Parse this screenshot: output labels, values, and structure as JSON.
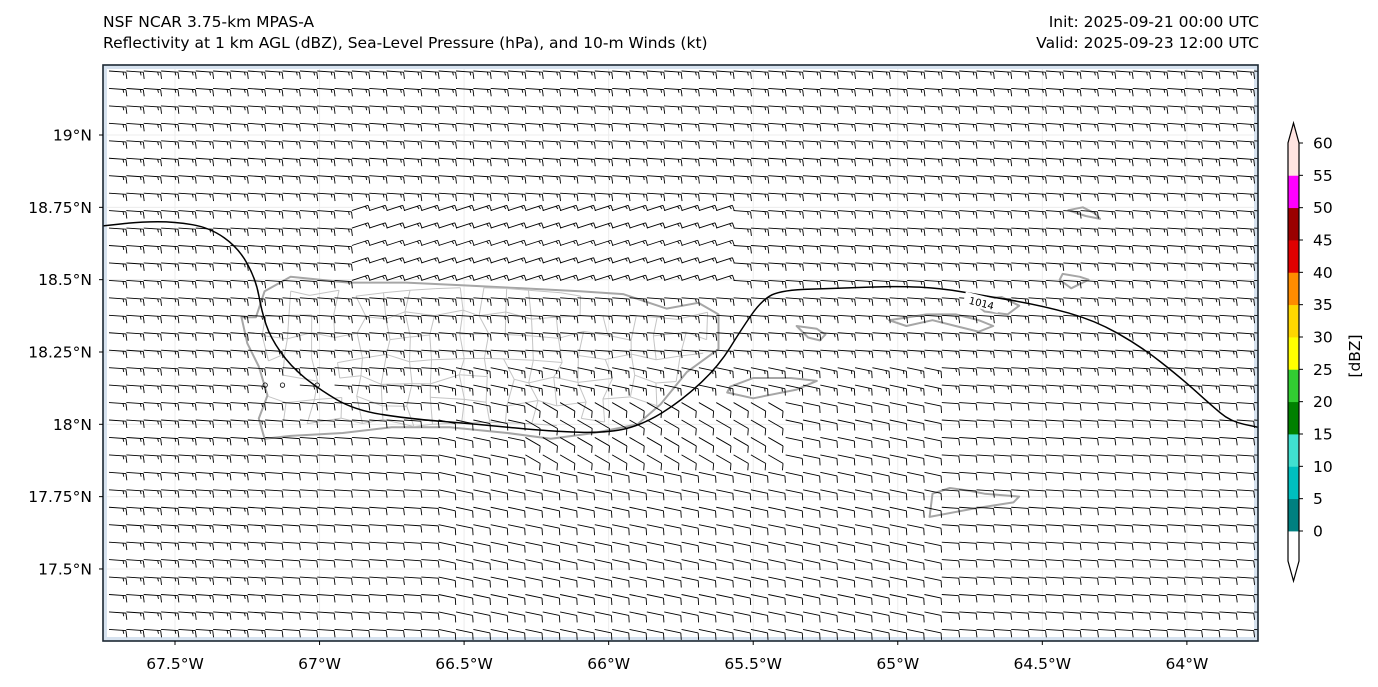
{
  "header": {
    "model_title": "NSF NCAR 3.75-km MPAS-A",
    "field_title": "Reflectivity at 1 km AGL (dBZ), Sea-Level Pressure (hPa), and 10-m Winds (kt)",
    "init_time": "Init: 2025-09-21 00:00 UTC",
    "valid_time": "Valid: 2025-09-23 12:00 UTC"
  },
  "map": {
    "extent": {
      "lon_min": -67.749,
      "lon_max": -63.754,
      "lat_min": 17.251,
      "lat_max": 19.242
    },
    "x_ticks": [
      {
        "lon": -67.5,
        "label": "67.5°W"
      },
      {
        "lon": -67.0,
        "label": "67°W"
      },
      {
        "lon": -66.5,
        "label": "66.5°W"
      },
      {
        "lon": -66.0,
        "label": "66°W"
      },
      {
        "lon": -65.5,
        "label": "65.5°W"
      },
      {
        "lon": -65.0,
        "label": "65°W"
      },
      {
        "lon": -64.5,
        "label": "64.5°W"
      },
      {
        "lon": -64.0,
        "label": "64°W"
      }
    ],
    "y_ticks": [
      {
        "lat": 19.0,
        "label": "19°N"
      },
      {
        "lat": 18.75,
        "label": "18.75°N"
      },
      {
        "lat": 18.5,
        "label": "18.5°N"
      },
      {
        "lat": 18.25,
        "label": "18.25°N"
      },
      {
        "lat": 18.0,
        "label": "18°N"
      },
      {
        "lat": 17.75,
        "label": "17.75°N"
      },
      {
        "lat": 17.5,
        "label": "17.5°N"
      }
    ],
    "colors": {
      "coastline": "#a6a6a6",
      "admin_border": "#c4c4c4",
      "isobar": "#000000",
      "barb": "#000000",
      "gridline": "#ececec",
      "domain_edge": "#d6e2ef"
    },
    "isobars": [
      {
        "label": "1014",
        "label_at": {
          "lon": -64.71,
          "lat": 18.42
        },
        "points": [
          [
            -67.749,
            18.686
          ],
          [
            -67.62,
            18.7
          ],
          [
            -67.5,
            18.7
          ],
          [
            -67.38,
            18.68
          ],
          [
            -67.28,
            18.61
          ],
          [
            -67.22,
            18.5
          ],
          [
            -67.2,
            18.39
          ],
          [
            -67.17,
            18.3
          ],
          [
            -67.1,
            18.2
          ],
          [
            -67.0,
            18.12
          ],
          [
            -66.88,
            18.05
          ],
          [
            -66.7,
            18.02
          ],
          [
            -66.45,
            18.0
          ],
          [
            -66.2,
            17.975
          ],
          [
            -66.0,
            17.97
          ],
          [
            -65.88,
            18.0
          ],
          [
            -65.75,
            18.08
          ],
          [
            -65.62,
            18.2
          ],
          [
            -65.54,
            18.33
          ],
          [
            -65.47,
            18.43
          ],
          [
            -65.4,
            18.465
          ],
          [
            -65.2,
            18.47
          ],
          [
            -65.0,
            18.478
          ],
          [
            -64.85,
            18.47
          ],
          [
            -64.7,
            18.445
          ],
          [
            -64.5,
            18.41
          ],
          [
            -64.32,
            18.36
          ],
          [
            -64.16,
            18.27
          ],
          [
            -64.02,
            18.16
          ],
          [
            -63.92,
            18.07
          ],
          [
            -63.85,
            18.01
          ],
          [
            -63.754,
            17.99
          ]
        ]
      }
    ],
    "coastlines": [
      {
        "name": "puerto-rico",
        "points": [
          [
            -67.27,
            18.37
          ],
          [
            -67.22,
            18.37
          ],
          [
            -67.19,
            18.46
          ],
          [
            -67.1,
            18.51
          ],
          [
            -66.9,
            18.49
          ],
          [
            -66.7,
            18.49
          ],
          [
            -66.5,
            18.48
          ],
          [
            -66.3,
            18.47
          ],
          [
            -66.1,
            18.46
          ],
          [
            -65.95,
            18.45
          ],
          [
            -65.8,
            18.4
          ],
          [
            -65.69,
            18.42
          ],
          [
            -65.62,
            18.38
          ],
          [
            -65.62,
            18.26
          ],
          [
            -65.73,
            18.18
          ],
          [
            -65.82,
            18.07
          ],
          [
            -65.9,
            18.0
          ],
          [
            -66.05,
            17.97
          ],
          [
            -66.2,
            17.95
          ],
          [
            -66.35,
            17.97
          ],
          [
            -66.55,
            17.99
          ],
          [
            -66.75,
            17.99
          ],
          [
            -66.92,
            17.97
          ],
          [
            -67.1,
            17.96
          ],
          [
            -67.19,
            17.95
          ],
          [
            -67.21,
            18.02
          ],
          [
            -67.18,
            18.1
          ],
          [
            -67.21,
            18.2
          ],
          [
            -67.25,
            18.28
          ],
          [
            -67.27,
            18.37
          ]
        ]
      },
      {
        "name": "culebra-vieques-west",
        "points": [
          [
            -65.59,
            18.11
          ],
          [
            -65.5,
            18.09
          ],
          [
            -65.35,
            18.12
          ],
          [
            -65.28,
            18.15
          ],
          [
            -65.37,
            18.16
          ],
          [
            -65.5,
            18.16
          ],
          [
            -65.58,
            18.13
          ],
          [
            -65.59,
            18.11
          ]
        ]
      },
      {
        "name": "culebra",
        "points": [
          [
            -65.35,
            18.34
          ],
          [
            -65.31,
            18.3
          ],
          [
            -65.27,
            18.29
          ],
          [
            -65.25,
            18.31
          ],
          [
            -65.28,
            18.33
          ],
          [
            -65.35,
            18.34
          ]
        ]
      },
      {
        "name": "st-thomas-st-john",
        "points": [
          [
            -65.03,
            18.36
          ],
          [
            -64.97,
            18.34
          ],
          [
            -64.88,
            18.36
          ],
          [
            -64.8,
            18.34
          ],
          [
            -64.72,
            18.32
          ],
          [
            -64.67,
            18.34
          ],
          [
            -64.72,
            18.36
          ],
          [
            -64.8,
            18.38
          ],
          [
            -64.9,
            18.38
          ],
          [
            -65.03,
            18.36
          ]
        ]
      },
      {
        "name": "tortola",
        "points": [
          [
            -64.75,
            18.43
          ],
          [
            -64.64,
            18.44
          ],
          [
            -64.58,
            18.41
          ],
          [
            -64.62,
            18.38
          ],
          [
            -64.7,
            18.39
          ],
          [
            -64.75,
            18.43
          ]
        ]
      },
      {
        "name": "virgin-gorda",
        "points": [
          [
            -64.43,
            18.52
          ],
          [
            -64.37,
            18.51
          ],
          [
            -64.34,
            18.5
          ],
          [
            -64.4,
            18.47
          ],
          [
            -64.44,
            18.5
          ],
          [
            -64.43,
            18.52
          ]
        ]
      },
      {
        "name": "anegada",
        "points": [
          [
            -64.41,
            18.74
          ],
          [
            -64.36,
            18.75
          ],
          [
            -64.32,
            18.73
          ],
          [
            -64.3,
            18.71
          ],
          [
            -64.35,
            18.72
          ],
          [
            -64.41,
            18.74
          ]
        ]
      },
      {
        "name": "st-croix",
        "points": [
          [
            -64.89,
            17.68
          ],
          [
            -64.88,
            17.76
          ],
          [
            -64.82,
            17.78
          ],
          [
            -64.75,
            17.77
          ],
          [
            -64.7,
            17.76
          ],
          [
            -64.58,
            17.75
          ],
          [
            -64.6,
            17.73
          ],
          [
            -64.73,
            17.71
          ],
          [
            -64.89,
            17.68
          ]
        ]
      }
    ],
    "wind_field": {
      "units": "kt",
      "typical_speed_kt": 10,
      "prevailing_direction": "east"
    },
    "calm_points": [
      [
        -67.26,
        18.15
      ],
      [
        -67.2,
        18.15
      ],
      [
        -67.14,
        18.15
      ],
      [
        -67.08,
        18.15
      ],
      [
        -67.02,
        18.15
      ],
      [
        -67.08,
        18.09
      ],
      [
        -66.7,
        18.21
      ],
      [
        -66.7,
        18.15
      ],
      [
        -66.64,
        18.15
      ],
      [
        -66.06,
        18.27
      ],
      [
        -66.0,
        18.27
      ],
      [
        -65.94,
        18.27
      ]
    ]
  },
  "colorbar": {
    "label": "[dBZ]",
    "extend": "both",
    "levels": [
      0,
      5,
      10,
      15,
      20,
      25,
      30,
      35,
      40,
      45,
      50,
      55,
      60
    ],
    "tick_labels": [
      "0",
      "5",
      "10",
      "15",
      "20",
      "25",
      "30",
      "35",
      "40",
      "45",
      "50",
      "55",
      "60"
    ],
    "colors": [
      "#008080",
      "#00bfbf",
      "#40e0d0",
      "#008000",
      "#32cd32",
      "#ffff00",
      "#ffd700",
      "#ff8c00",
      "#e00000",
      "#9b0000",
      "#ff00ff",
      "#ffe4e1"
    ],
    "under_color": "#ffffff",
    "over_color": "#ffe4e1"
  }
}
